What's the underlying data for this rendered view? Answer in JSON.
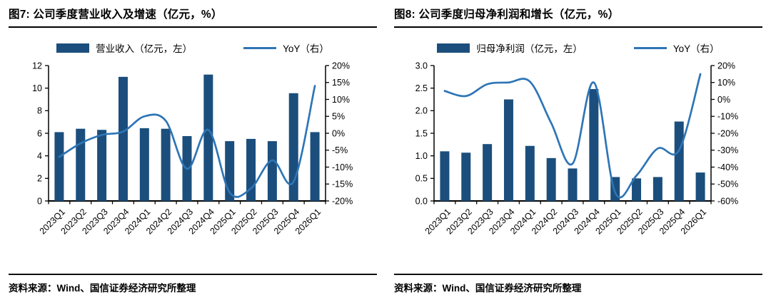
{
  "source_note": "资料来源：Wind、国信证券经济研究所整理",
  "colors": {
    "bar": "#1B4E7C",
    "line": "#2E75B6",
    "axis": "#000000"
  },
  "chart_data": [
    {
      "type": "bar+line",
      "title": "图7: 公司季度营业收入及增速（亿元，%）",
      "categories": [
        "2023Q1",
        "2023Q2",
        "2023Q3",
        "2023Q4",
        "2024Q1",
        "2024Q2",
        "2024Q3",
        "2024Q4",
        "2025Q1",
        "2025Q2",
        "2025Q3",
        "2025Q4",
        "2026Q1"
      ],
      "series": [
        {
          "name": "营业收入（亿元，左）",
          "type": "bar",
          "axis": "left",
          "values": [
            6.1,
            6.4,
            6.3,
            11.0,
            6.45,
            6.4,
            5.75,
            11.2,
            5.3,
            5.5,
            5.3,
            9.55,
            6.1
          ]
        },
        {
          "name": "YoY（右）",
          "type": "line",
          "axis": "right",
          "values": [
            -7,
            -3,
            -0.5,
            0.5,
            5,
            3.7,
            -10.5,
            1,
            -17.5,
            -16.3,
            -8,
            -14.3,
            14
          ]
        }
      ],
      "y_left": {
        "min": 0,
        "max": 12,
        "ticks_top_to_bottom": [
          "12",
          "10",
          "8",
          "6",
          "4",
          "2",
          "0"
        ]
      },
      "y_right": {
        "min": -20,
        "max": 20,
        "ticks_top_to_bottom": [
          "20%",
          "15%",
          "10%",
          "5%",
          "0%",
          "-5%",
          "-10%",
          "-15%",
          "-20%"
        ]
      },
      "legend_position": "top",
      "grid": false
    },
    {
      "type": "bar+line",
      "title": "图8: 公司季度归母净利润和增长（亿元，%）",
      "categories": [
        "2023Q1",
        "2023Q2",
        "2023Q3",
        "2023Q4",
        "2024Q1",
        "2024Q2",
        "2024Q3",
        "2024Q4",
        "2025Q1",
        "2025Q2",
        "2025Q3",
        "2025Q4",
        "2026Q1"
      ],
      "series": [
        {
          "name": "归母净利润（亿元，左）",
          "type": "bar",
          "axis": "left",
          "values": [
            1.1,
            1.07,
            1.26,
            2.25,
            1.22,
            0.95,
            0.72,
            2.48,
            0.53,
            0.5,
            0.53,
            1.76,
            0.63
          ]
        },
        {
          "name": "YoY（右）",
          "type": "line",
          "axis": "right",
          "values": [
            5,
            2,
            9,
            10,
            10.5,
            -14,
            -38,
            10,
            -55,
            -45,
            -29,
            -30,
            15
          ]
        }
      ],
      "y_left": {
        "min": 0,
        "max": 3,
        "ticks_top_to_bottom": [
          "3.0",
          "2.5",
          "2.0",
          "1.5",
          "1.0",
          "0.5",
          "0.0"
        ]
      },
      "y_right": {
        "min": -60,
        "max": 20,
        "ticks_top_to_bottom": [
          "20%",
          "10%",
          "0%",
          "-10%",
          "-20%",
          "-30%",
          "-40%",
          "-50%",
          "-60%"
        ]
      },
      "legend_position": "top",
      "grid": false
    }
  ]
}
